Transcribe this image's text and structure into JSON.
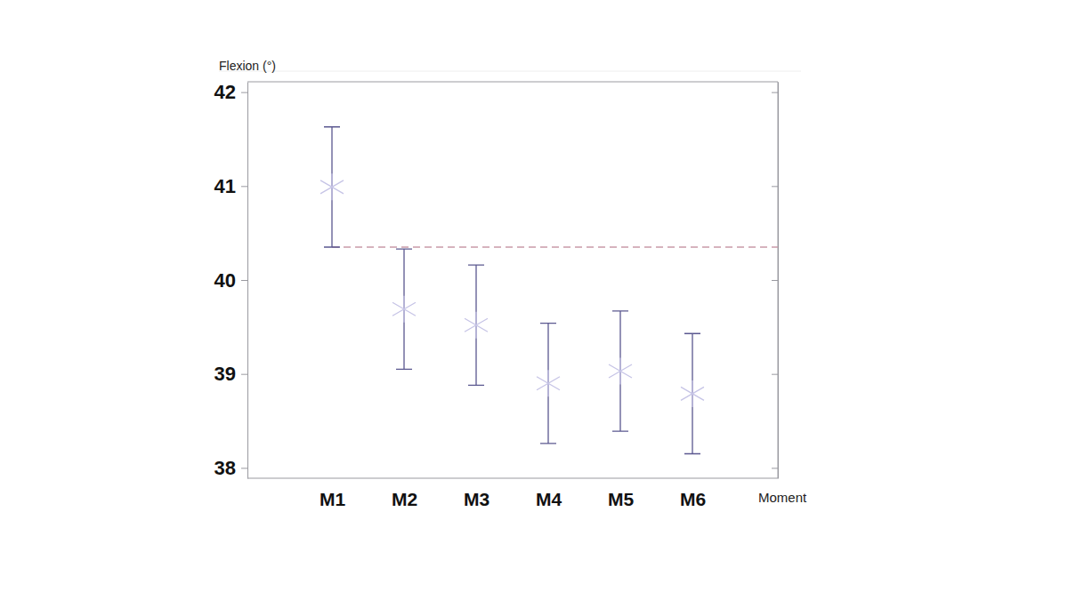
{
  "chart_data": {
    "type": "scatter",
    "xlabel": "Moment",
    "ylabel": "Flexion (°)",
    "categories": [
      "M1",
      "M2",
      "M3",
      "M4",
      "M5",
      "M6"
    ],
    "values": [
      40.99,
      39.69,
      39.52,
      38.9,
      39.03,
      38.79
    ],
    "errors": [
      0.64,
      0.64,
      0.64,
      0.64,
      0.64,
      0.64
    ],
    "reference_line": 40.35,
    "marker": "asterisk",
    "color": "#5b5890",
    "ylim": [
      37.89,
      42.11
    ],
    "yticks": [
      38,
      39,
      40,
      41,
      42
    ],
    "grid": false
  }
}
